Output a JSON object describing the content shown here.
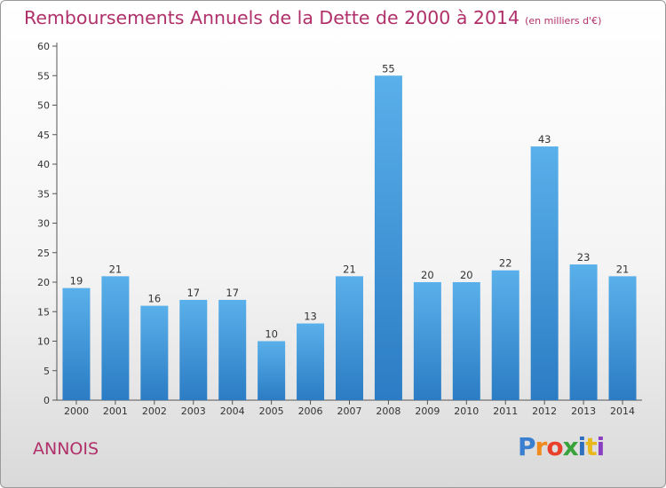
{
  "chart_data": {
    "type": "bar",
    "title": "Remboursements Annuels de la Dette de 2000 à 2014",
    "subtitle": "(en milliers d'€)",
    "categories": [
      "2000",
      "2001",
      "2002",
      "2003",
      "2004",
      "2005",
      "2006",
      "2007",
      "2008",
      "2009",
      "2010",
      "2011",
      "2012",
      "2013",
      "2014"
    ],
    "values": [
      19,
      21,
      16,
      17,
      17,
      10,
      13,
      21,
      55,
      20,
      20,
      22,
      43,
      23,
      21
    ],
    "ylim": [
      0,
      60
    ],
    "yticks": [
      0,
      5,
      10,
      15,
      20,
      25,
      30,
      35,
      40,
      45,
      50,
      55,
      60
    ],
    "grid": false,
    "bar_color": "#4ea3e0"
  },
  "commune": "ANNOIS",
  "logo": {
    "letters": [
      "P",
      "r",
      "o",
      "x",
      "i",
      "t",
      "i"
    ],
    "colors": [
      "#3a7fd0",
      "#f08a1c",
      "#e8402a",
      "#3aa23a",
      "#2f6fc0",
      "#e8b81c",
      "#8a3fc0"
    ]
  }
}
